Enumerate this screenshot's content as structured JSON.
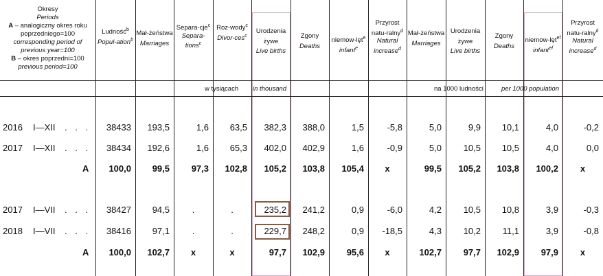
{
  "header": {
    "period": {
      "title": "Okresy",
      "title_en": "Periods",
      "a_label": "A",
      "a_text": " – analogiczny okres roku poprzedniego=100",
      "a_text_en": "corresponding period of previous year=100",
      "b_label": "B",
      "b_text": " – okres poprzedni=100",
      "b_text_en": "previous period=100"
    },
    "columns": [
      {
        "pl": "Ludność",
        "sup": "b",
        "en": "Popul-ation",
        "en_sup": "b"
      },
      {
        "pl": "Mał-żeństwa",
        "sup": "",
        "en": "Marriages",
        "en_sup": ""
      },
      {
        "pl": "Separa-cje",
        "sup": "c",
        "en": "Separa-tions",
        "en_sup": "c"
      },
      {
        "pl": "Roz-wody",
        "sup": "c",
        "en": "Divor-ces",
        "en_sup": "c"
      },
      {
        "pl": "Urodzenia żywe",
        "sup": "",
        "en": "Live births",
        "en_sup": ""
      },
      {
        "pl": "Zgony",
        "sup": "",
        "en": "Deaths",
        "en_sup": ""
      },
      {
        "pl": "niemow-lęt",
        "sup": "e",
        "en": "infant",
        "en_sup": "e"
      },
      {
        "pl": "Przyrost natu-ralny",
        "sup": "d",
        "en": "Natural increase",
        "en_sup": "d"
      },
      {
        "pl": "Mał-żeństwa",
        "sup": "",
        "en": "Marriages",
        "en_sup": ""
      },
      {
        "pl": "Urodzenia żywe",
        "sup": "",
        "en": "Live births",
        "en_sup": ""
      },
      {
        "pl": "Zgony",
        "sup": "",
        "en": "Deaths",
        "en_sup": ""
      },
      {
        "pl": "niemow-lęt",
        "sup": "ef",
        "en": "infant",
        "en_sup": "ef"
      },
      {
        "pl": "Przyrost natu-ralny",
        "sup": "d",
        "en": "Natural increase",
        "en_sup": "d"
      }
    ],
    "unit_left_pl": "w tysiącach",
    "unit_left_en": "in thousand",
    "unit_right_pl": "na 1000 ludności",
    "unit_right_en": "per 1000 population"
  },
  "rows": [
    {
      "year": "2016",
      "period": "I—XII",
      "dots": ". . .",
      "label": "",
      "bold": false,
      "values": [
        "38433",
        "193,5",
        "1,6",
        "63,5",
        "382,3",
        "388,0",
        "1,5",
        "-5,8",
        "5,0",
        "9,9",
        "10,1",
        "4,0",
        "-0,2"
      ]
    },
    {
      "year": "2017",
      "period": "I—XII",
      "dots": ". . .",
      "label": "",
      "bold": false,
      "values": [
        "38434",
        "192,6",
        "1,6",
        "65,3",
        "402,0",
        "402,9",
        "1,6",
        "-0,9",
        "5,0",
        "10,5",
        "10,5",
        "4,0",
        "0,0"
      ]
    },
    {
      "year": "",
      "period": "",
      "dots": "",
      "label": "A",
      "bold": true,
      "values": [
        "100,0",
        "99,5",
        "97,3",
        "102,8",
        "105,2",
        "103,8",
        "105,4",
        "x",
        "99,5",
        "105,2",
        "103,8",
        "100,2",
        "x"
      ]
    },
    {
      "year": "2017",
      "period": "I—VII",
      "dots": ". . .",
      "label": "",
      "bold": false,
      "values": [
        "38427",
        "94,5",
        ".",
        ".",
        "235,2",
        "241,2",
        "0,9",
        "-6,0",
        "4,2",
        "10,5",
        "10,8",
        "3,9",
        "-0,3"
      ]
    },
    {
      "year": "2018",
      "period": "I—VII",
      "dots": ". . .",
      "label": "",
      "bold": false,
      "values": [
        "38416",
        "97,1",
        ".",
        ".",
        "229,7",
        "248,2",
        "0,9",
        "-18,5",
        "4,3",
        "10,2",
        "11,1",
        "3,9",
        "-0,8"
      ]
    },
    {
      "year": "",
      "period": "",
      "dots": "",
      "label": "A",
      "bold": true,
      "values": [
        "100,0",
        "102,7",
        "x",
        "x",
        "97,7",
        "102,9",
        "95,6",
        "x",
        "102,7",
        "97,7",
        "102,9",
        "97,9",
        "x"
      ]
    }
  ],
  "highlight_color": "#8a5a40"
}
